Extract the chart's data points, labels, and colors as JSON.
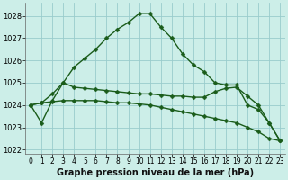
{
  "title": "Graphe pression niveau de la mer (hPa)",
  "background_color": "#cceee8",
  "grid_color": "#99cccc",
  "line_color": "#1a5c1a",
  "xlim": [
    -0.5,
    23.5
  ],
  "ylim": [
    1021.8,
    1028.6
  ],
  "yticks": [
    1022,
    1023,
    1024,
    1025,
    1026,
    1027,
    1028
  ],
  "xticks": [
    0,
    1,
    2,
    3,
    4,
    5,
    6,
    7,
    8,
    9,
    10,
    11,
    12,
    13,
    14,
    15,
    16,
    17,
    18,
    19,
    20,
    21,
    22,
    23
  ],
  "series": [
    {
      "x": [
        0,
        1,
        2,
        3,
        4,
        5,
        6,
        7,
        8,
        9,
        10,
        11,
        12,
        13,
        14,
        15,
        16,
        17,
        18,
        19,
        20,
        21,
        22,
        23
      ],
      "y": [
        1024.0,
        1023.2,
        1024.2,
        1025.0,
        1025.7,
        1026.1,
        1026.5,
        1027.0,
        1027.4,
        1027.7,
        1028.1,
        1028.1,
        1027.5,
        1027.0,
        1026.3,
        1025.8,
        1025.5,
        1025.0,
        1024.9,
        1024.9,
        1024.0,
        1023.8,
        1023.2,
        1022.4
      ]
    },
    {
      "x": [
        0,
        1,
        2,
        3,
        4,
        5,
        6,
        7,
        8,
        9,
        10,
        11,
        12,
        13,
        14,
        15,
        16,
        17,
        18,
        19,
        20,
        21,
        22,
        23
      ],
      "y": [
        1024.0,
        1024.1,
        1024.15,
        1024.2,
        1024.2,
        1024.2,
        1024.2,
        1024.15,
        1024.1,
        1024.1,
        1024.05,
        1024.0,
        1023.9,
        1023.8,
        1023.7,
        1023.6,
        1023.5,
        1023.4,
        1023.3,
        1023.2,
        1023.0,
        1022.8,
        1022.5,
        1022.4
      ]
    },
    {
      "x": [
        0,
        1,
        2,
        3,
        4,
        5,
        6,
        7,
        8,
        9,
        10,
        11,
        12,
        13,
        14,
        15,
        16,
        17,
        18,
        19,
        20,
        21,
        22,
        23
      ],
      "y": [
        1024.0,
        1024.1,
        1024.5,
        1025.0,
        1024.8,
        1024.75,
        1024.7,
        1024.65,
        1024.6,
        1024.55,
        1024.5,
        1024.5,
        1024.45,
        1024.4,
        1024.4,
        1024.35,
        1024.35,
        1024.6,
        1024.75,
        1024.8,
        1024.4,
        1024.0,
        1023.2,
        1022.4
      ]
    }
  ],
  "marker": "D",
  "markersize": 2.5,
  "linewidth": 1.0,
  "xlabel_fontsize": 7,
  "ytick_fontsize": 6,
  "xtick_fontsize": 5.5
}
